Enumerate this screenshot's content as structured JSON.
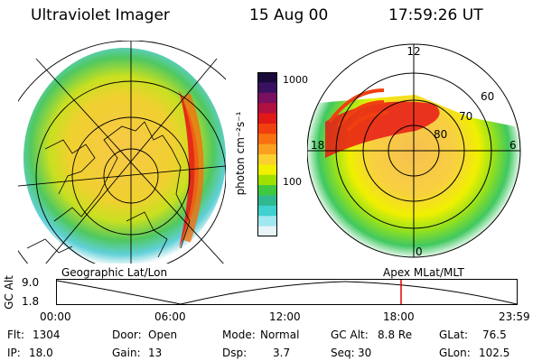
{
  "header": {
    "instrument": "Ultraviolet Imager",
    "date": "15 Aug 00",
    "time": "17:59:26 UT"
  },
  "colorbar": {
    "unit": "photon cm⁻²s⁻¹",
    "ticks": [
      "1000",
      "100"
    ],
    "colors": [
      "#1a0a3a",
      "#3a1060",
      "#7a1060",
      "#b01040",
      "#e01818",
      "#f04010",
      "#f87010",
      "#fca020",
      "#fcd030",
      "#f0f000",
      "#a0e000",
      "#40c840",
      "#30b890",
      "#40d0d0",
      "#a0e8f0",
      "#e8f4f8"
    ]
  },
  "left_map": {
    "caption": "Geographic Lat/Lon"
  },
  "right_map": {
    "caption": "Apex  MLat/MLT",
    "lat_labels": [
      "60",
      "70",
      "80"
    ],
    "mlt_labels": [
      "12",
      "18",
      "6",
      "0"
    ]
  },
  "altitude_plot": {
    "ylabel": "GC Alt",
    "yticks": [
      "9.0",
      "1.8"
    ],
    "xticks": [
      "00:00",
      "06:00",
      "12:00",
      "18:00",
      "23:59"
    ],
    "marker_color": "#e00000"
  },
  "status": {
    "flt_label": "Flt:",
    "flt_value": "1304",
    "ip_label": "IP:",
    "ip_value": "18.0",
    "door_label": "Door:",
    "door_value": "Open",
    "gain_label": "Gain:",
    "gain_value": "13",
    "mode_label": "Mode:",
    "mode_value": "Normal",
    "dsp_label": "Dsp:",
    "dsp_value": "3.7",
    "gcalt_label": "GC Alt:",
    "gcalt_value": "8.8 Re",
    "seq_label": "Seq:",
    "seq_value": "30",
    "glat_label": "GLat:",
    "glat_value": "76.5",
    "glon_label": "GLon:",
    "glon_value": "102.5"
  }
}
